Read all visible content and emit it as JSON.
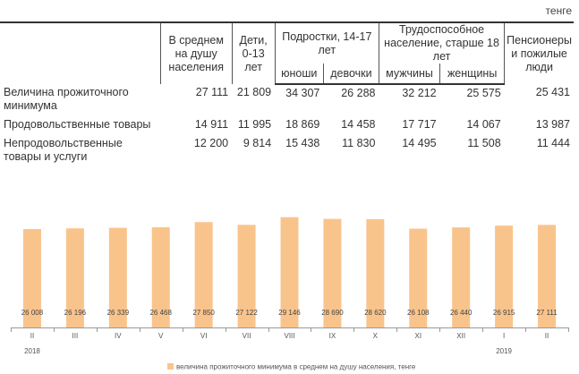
{
  "unit_label": "тенге",
  "table": {
    "headers": {
      "avg": "В среднем на душу населения",
      "children": "Дети, 0-13 лет",
      "teens": "Подростки, 14-17 лет",
      "working": "Трудоспособное население, старше 18 лет",
      "pensioners": "Пенсионеры и пожилые люди",
      "boys": "юноши",
      "girls": "девочки",
      "men": "мужчины",
      "women": "женщины"
    },
    "rows": [
      {
        "label": "Величина прожиточного минимума",
        "values": [
          "27 111",
          "21 809",
          "34 307",
          "26 288",
          "32 212",
          "25 575",
          "25 431"
        ]
      },
      {
        "label": "Продовольственные товары",
        "values": [
          "14 911",
          "11 995",
          "18 869",
          "14 458",
          "17 717",
          "14 067",
          "13 987"
        ]
      },
      {
        "label": "Непродовольственные товары и услуги",
        "values": [
          "12 200",
          "9 814",
          "15 438",
          "11 830",
          "14 495",
          "11 508",
          "11 444"
        ]
      }
    ]
  },
  "chart_data": {
    "type": "bar",
    "categories": [
      "II",
      "III",
      "IV",
      "V",
      "VI",
      "VII",
      "VIII",
      "IX",
      "X",
      "XI",
      "XII",
      "I",
      "II"
    ],
    "values": [
      26008,
      26196,
      26339,
      26468,
      27850,
      27122,
      29146,
      28690,
      28620,
      26108,
      26440,
      26915,
      27111
    ],
    "value_labels": [
      "26 008",
      "26 196",
      "26 339",
      "26 468",
      "27 850",
      "27 122",
      "29 146",
      "28 690",
      "28 620",
      "26 108",
      "26 440",
      "26 915",
      "27 111"
    ],
    "years": [
      "2018",
      "2019"
    ],
    "legend": "величина прожиточного минимума в среднем на душу населения, тенге",
    "ylim": [
      0,
      30500
    ],
    "bar_color": "#f9c48c",
    "legend_placement": "bottom"
  }
}
